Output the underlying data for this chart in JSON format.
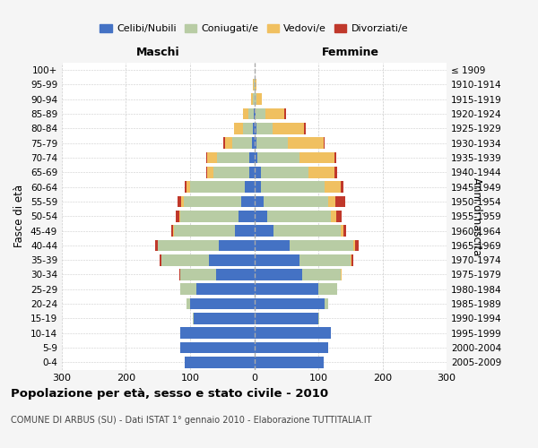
{
  "age_groups": [
    "0-4",
    "5-9",
    "10-14",
    "15-19",
    "20-24",
    "25-29",
    "30-34",
    "35-39",
    "40-44",
    "45-49",
    "50-54",
    "55-59",
    "60-64",
    "65-69",
    "70-74",
    "75-79",
    "80-84",
    "85-89",
    "90-94",
    "95-99",
    "100+"
  ],
  "birth_years": [
    "2005-2009",
    "2000-2004",
    "1995-1999",
    "1990-1994",
    "1985-1989",
    "1980-1984",
    "1975-1979",
    "1970-1974",
    "1965-1969",
    "1960-1964",
    "1955-1959",
    "1950-1954",
    "1945-1949",
    "1940-1944",
    "1935-1939",
    "1930-1934",
    "1925-1929",
    "1920-1924",
    "1915-1919",
    "1910-1914",
    "≤ 1909"
  ],
  "colors": {
    "celibi": "#4472c4",
    "coniugati": "#b8cca4",
    "vedovi": "#f0c060",
    "divorziati": "#c0382b"
  },
  "maschi": {
    "celibi": [
      108,
      115,
      115,
      95,
      100,
      90,
      60,
      70,
      55,
      30,
      25,
      20,
      15,
      8,
      8,
      4,
      2,
      1,
      0,
      0,
      0
    ],
    "coniugati": [
      0,
      0,
      0,
      1,
      5,
      25,
      55,
      75,
      95,
      95,
      90,
      90,
      85,
      55,
      50,
      30,
      15,
      8,
      2,
      1,
      0
    ],
    "vedovi": [
      0,
      0,
      0,
      0,
      0,
      0,
      0,
      0,
      1,
      1,
      2,
      4,
      5,
      10,
      15,
      12,
      15,
      8,
      3,
      1,
      0
    ],
    "divorziati": [
      0,
      0,
      0,
      0,
      0,
      0,
      2,
      2,
      3,
      3,
      5,
      5,
      3,
      2,
      2,
      2,
      0,
      0,
      0,
      0,
      0
    ]
  },
  "femmine": {
    "celibi": [
      108,
      115,
      120,
      100,
      110,
      100,
      75,
      70,
      55,
      30,
      20,
      15,
      10,
      10,
      5,
      3,
      3,
      2,
      1,
      0,
      0
    ],
    "coniugati": [
      0,
      0,
      0,
      1,
      5,
      30,
      60,
      80,
      100,
      105,
      100,
      100,
      100,
      75,
      65,
      50,
      25,
      15,
      3,
      1,
      0
    ],
    "vedovi": [
      0,
      0,
      0,
      0,
      0,
      0,
      1,
      2,
      3,
      4,
      8,
      12,
      25,
      40,
      55,
      55,
      50,
      30,
      8,
      2,
      1
    ],
    "divorziati": [
      0,
      0,
      0,
      0,
      0,
      0,
      1,
      3,
      5,
      5,
      8,
      15,
      4,
      4,
      3,
      2,
      2,
      2,
      0,
      0,
      0
    ]
  },
  "title": "Popolazione per età, sesso e stato civile - 2010",
  "subtitle": "COMUNE DI ARBUS (SU) - Dati ISTAT 1° gennaio 2010 - Elaborazione TUTTITALIA.IT",
  "xlabel_left": "Maschi",
  "xlabel_right": "Femmine",
  "ylabel": "Fasce di età",
  "ylabel_right": "Anni di nascita",
  "xlim": 300,
  "legend_labels": [
    "Celibi/Nubili",
    "Coniugati/e",
    "Vedovi/e",
    "Divorziati/e"
  ],
  "bg_color": "#f5f5f5",
  "plot_bg": "#ffffff",
  "grid_color": "#cccccc"
}
